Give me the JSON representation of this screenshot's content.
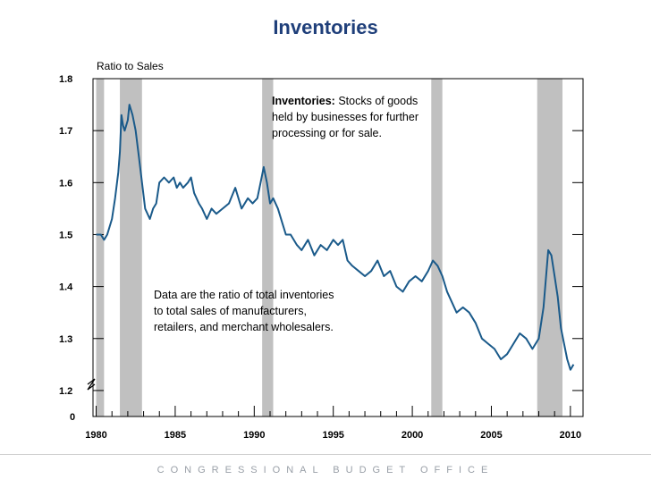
{
  "page": {
    "title": "Inventories",
    "footer": "CONGRESSIONAL BUDGET OFFICE"
  },
  "chart_data": {
    "type": "line",
    "title": "Inventories",
    "ylabel": "Ratio to Sales",
    "xlabel": "",
    "xlim": [
      1979.8,
      2010.8
    ],
    "ylim": [
      1.15,
      1.8
    ],
    "y_ticks": [
      1.2,
      1.3,
      1.4,
      1.5,
      1.6,
      1.7,
      1.8
    ],
    "y_tick_labels": [
      "1.2",
      "1.3",
      "1.4",
      "1.5",
      "1.6",
      "1.7",
      "1.8"
    ],
    "y_zero_label": "0",
    "x_ticks": [
      1980,
      1985,
      1990,
      1995,
      2000,
      2005,
      2010
    ],
    "x_tick_labels": [
      "1980",
      "1985",
      "1990",
      "1995",
      "2000",
      "2005",
      "2010"
    ],
    "recessions": [
      [
        1980.0,
        1980.5
      ],
      [
        1981.5,
        1982.9
      ],
      [
        1990.5,
        1991.2
      ],
      [
        2001.2,
        2001.9
      ],
      [
        2007.9,
        2009.5
      ]
    ],
    "series": [
      {
        "color": "#1a5a8a",
        "x": [
          1980.0,
          1980.3,
          1980.5,
          1980.7,
          1981.0,
          1981.2,
          1981.4,
          1981.5,
          1981.6,
          1981.7,
          1981.8,
          1982.0,
          1982.1,
          1982.3,
          1982.5,
          1982.7,
          1982.9,
          1983.1,
          1983.4,
          1983.6,
          1983.8,
          1984.0,
          1984.3,
          1984.6,
          1984.9,
          1985.1,
          1985.3,
          1985.5,
          1985.8,
          1986.0,
          1986.2,
          1986.5,
          1986.7,
          1987.0,
          1987.3,
          1987.6,
          1988.0,
          1988.4,
          1988.8,
          1989.2,
          1989.6,
          1989.9,
          1990.2,
          1990.4,
          1990.6,
          1990.8,
          1991.0,
          1991.2,
          1991.5,
          1991.8,
          1992.0,
          1992.3,
          1992.7,
          1993.0,
          1993.4,
          1993.8,
          1994.2,
          1994.6,
          1995.0,
          1995.3,
          1995.6,
          1995.9,
          1996.2,
          1996.6,
          1997.0,
          1997.4,
          1997.8,
          1998.2,
          1998.6,
          1999.0,
          1999.4,
          1999.8,
          2000.2,
          2000.6,
          2001.0,
          2001.3,
          2001.6,
          2001.9,
          2002.2,
          2002.5,
          2002.8,
          2003.2,
          2003.6,
          2004.0,
          2004.4,
          2004.8,
          2005.2,
          2005.6,
          2006.0,
          2006.4,
          2006.8,
          2007.2,
          2007.6,
          2008.0,
          2008.3,
          2008.6,
          2008.8,
          2009.0,
          2009.2,
          2009.4,
          2009.6,
          2009.8,
          2010.0,
          2010.2
        ],
        "values": [
          1.5,
          1.5,
          1.49,
          1.5,
          1.53,
          1.57,
          1.62,
          1.66,
          1.73,
          1.71,
          1.7,
          1.72,
          1.75,
          1.73,
          1.7,
          1.65,
          1.6,
          1.55,
          1.53,
          1.55,
          1.56,
          1.6,
          1.61,
          1.6,
          1.61,
          1.59,
          1.6,
          1.59,
          1.6,
          1.61,
          1.58,
          1.56,
          1.55,
          1.53,
          1.55,
          1.54,
          1.55,
          1.56,
          1.59,
          1.55,
          1.57,
          1.56,
          1.57,
          1.6,
          1.63,
          1.6,
          1.56,
          1.57,
          1.55,
          1.52,
          1.5,
          1.5,
          1.48,
          1.47,
          1.49,
          1.46,
          1.48,
          1.47,
          1.49,
          1.48,
          1.49,
          1.45,
          1.44,
          1.43,
          1.42,
          1.43,
          1.45,
          1.42,
          1.43,
          1.4,
          1.39,
          1.41,
          1.42,
          1.41,
          1.43,
          1.45,
          1.44,
          1.42,
          1.39,
          1.37,
          1.35,
          1.36,
          1.35,
          1.33,
          1.3,
          1.29,
          1.28,
          1.26,
          1.27,
          1.29,
          1.31,
          1.3,
          1.28,
          1.3,
          1.36,
          1.47,
          1.46,
          1.42,
          1.38,
          1.32,
          1.29,
          1.26,
          1.24,
          1.25
        ]
      }
    ],
    "annotations": [
      {
        "bold": "Inventories:",
        "lines": [
          "Stocks of goods",
          "held by businesses for further",
          "processing or for sale."
        ]
      },
      {
        "lines": [
          "Data are the ratio of total inventories",
          "to total sales of manufacturers,",
          "retailers, and merchant wholesalers."
        ]
      }
    ],
    "grid": false,
    "legend": "none"
  }
}
